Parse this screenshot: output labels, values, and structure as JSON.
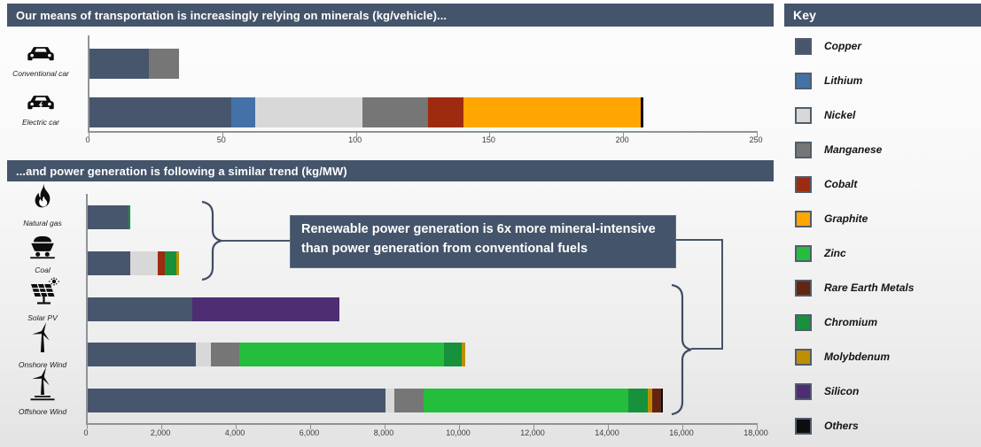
{
  "key": {
    "title": "Key",
    "items": [
      {
        "label": "Copper",
        "color": "#47566C"
      },
      {
        "label": "Lithium",
        "color": "#4472A8"
      },
      {
        "label": "Nickel",
        "color": "#D8D8D8"
      },
      {
        "label": "Manganese",
        "color": "#767676"
      },
      {
        "label": "Cobalt",
        "color": "#9E2B10"
      },
      {
        "label": "Graphite",
        "color": "#FFA600"
      },
      {
        "label": "Zinc",
        "color": "#24BE3C"
      },
      {
        "label": "Rare Earth Metals",
        "color": "#632512"
      },
      {
        "label": "Chromium",
        "color": "#17913C"
      },
      {
        "label": "Molybdenum",
        "color": "#BF8F00"
      },
      {
        "label": "Silicon",
        "color": "#4E2D73"
      },
      {
        "label": "Others",
        "color": "#0D0D0D"
      }
    ]
  },
  "callout": {
    "text": "Renewable power generation is 6x more mineral-intensive than power generation from conventional fuels"
  },
  "colors": {
    "header_bg": "#44546A",
    "callout_bg": "#44546A",
    "axis": "#8f9399"
  },
  "chart_data": [
    {
      "type": "bar",
      "orientation": "horizontal",
      "title": "Our means of transportation is increasingly relying on minerals (kg/vehicle)...",
      "unit": "kg/vehicle",
      "xlim": [
        0,
        250
      ],
      "x_ticks": [
        "0",
        "50",
        "100",
        "150",
        "200",
        "250"
      ],
      "grid": false,
      "categories": [
        "Conventional car",
        "Electric car"
      ],
      "bars": [
        {
          "category": "Conventional car",
          "icon": "car-icon",
          "total": 33.5,
          "segments": [
            {
              "mineral": "Copper",
              "value": 22.3
            },
            {
              "mineral": "Manganese",
              "value": 11.2
            }
          ]
        },
        {
          "category": "Electric car",
          "icon": "electric-car-icon",
          "total": 207,
          "segments": [
            {
              "mineral": "Copper",
              "value": 53.2
            },
            {
              "mineral": "Lithium",
              "value": 8.9
            },
            {
              "mineral": "Nickel",
              "value": 39.9
            },
            {
              "mineral": "Manganese",
              "value": 24.5
            },
            {
              "mineral": "Cobalt",
              "value": 13.3
            },
            {
              "mineral": "Graphite",
              "value": 66.3
            },
            {
              "mineral": "Others",
              "value": 1.0
            }
          ]
        }
      ]
    },
    {
      "type": "bar",
      "orientation": "horizontal",
      "title": "...and power generation is following a similar trend (kg/MW)",
      "unit": "kg/MW",
      "xlim": [
        0,
        18000
      ],
      "x_ticks": [
        "0",
        "2,000",
        "4,000",
        "6,000",
        "8,000",
        "10,000",
        "12,000",
        "14,000",
        "16,000",
        "18,000"
      ],
      "grid": false,
      "categories": [
        "Natural gas",
        "Coal",
        "Solar PV",
        "Onshore Wind",
        "Offshore Wind"
      ],
      "annotation": "Renewable power generation is 6x more mineral-intensive than power generation from conventional fuels",
      "bars": [
        {
          "category": "Natural gas",
          "icon": "flame-icon",
          "total": 1150,
          "segments": [
            {
              "mineral": "Copper",
              "value": 1100
            },
            {
              "mineral": "Chromium",
              "value": 50
            }
          ]
        },
        {
          "category": "Coal",
          "icon": "coal-cart-icon",
          "total": 2450,
          "segments": [
            {
              "mineral": "Copper",
              "value": 1150
            },
            {
              "mineral": "Nickel",
              "value": 720
            },
            {
              "mineral": "Cobalt",
              "value": 200
            },
            {
              "mineral": "Chromium",
              "value": 310
            },
            {
              "mineral": "Molybdenum",
              "value": 70
            }
          ]
        },
        {
          "category": "Solar PV",
          "icon": "solar-panel-icon",
          "total": 6770,
          "segments": [
            {
              "mineral": "Copper",
              "value": 2820
            },
            {
              "mineral": "Silicon",
              "value": 3950
            }
          ]
        },
        {
          "category": "Onshore Wind",
          "icon": "wind-turbine-icon",
          "total": 10150,
          "segments": [
            {
              "mineral": "Copper",
              "value": 2900
            },
            {
              "mineral": "Nickel",
              "value": 400
            },
            {
              "mineral": "Manganese",
              "value": 780
            },
            {
              "mineral": "Zinc",
              "value": 5500
            },
            {
              "mineral": "Chromium",
              "value": 470
            },
            {
              "mineral": "Molybdenum",
              "value": 100
            }
          ]
        },
        {
          "category": "Offshore Wind",
          "icon": "offshore-wind-turbine-icon",
          "total": 15455,
          "segments": [
            {
              "mineral": "Copper",
              "value": 8000
            },
            {
              "mineral": "Nickel",
              "value": 240
            },
            {
              "mineral": "Manganese",
              "value": 790
            },
            {
              "mineral": "Zinc",
              "value": 5500
            },
            {
              "mineral": "Chromium",
              "value": 525
            },
            {
              "mineral": "Molybdenum",
              "value": 110
            },
            {
              "mineral": "Rare Earth Metals",
              "value": 240
            },
            {
              "mineral": "Others",
              "value": 50
            }
          ]
        }
      ]
    }
  ]
}
